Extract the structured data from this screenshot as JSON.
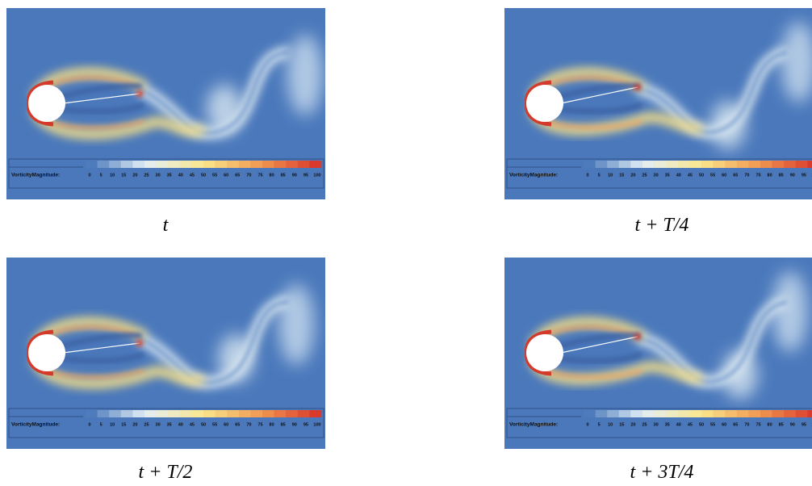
{
  "panels": [
    {
      "caption": "t"
    },
    {
      "caption": "t + T/4"
    },
    {
      "caption": "t + T/2"
    },
    {
      "caption": "t + 3T/4"
    }
  ],
  "colorbar": {
    "label": "VorticityMagnitude:",
    "ticks": [
      0,
      5,
      10,
      15,
      20,
      25,
      30,
      35,
      40,
      45,
      50,
      55,
      60,
      65,
      70,
      75,
      80,
      85,
      90,
      95,
      100
    ]
  }
}
